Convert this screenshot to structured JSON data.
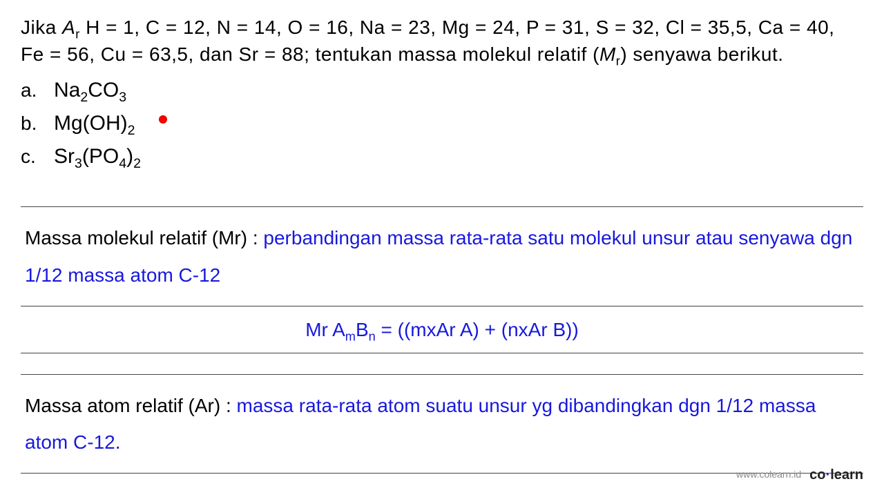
{
  "question": {
    "prefix": "Jika ",
    "ar_label": "A",
    "ar_sub": "r",
    "atomic_masses": " H = 1, C = 12, N = 14, O = 16, Na = 23, Mg = 24, P = 31, S = 32, Cl = 35,5, Ca = 40, Fe = 56, Cu = 63,5, dan Sr = 88; tentukan massa molekul relatif (",
    "mr_label": "M",
    "mr_sub": "r",
    "suffix": ") senyawa berikut."
  },
  "compounds": [
    {
      "letter": "a.",
      "parts": [
        {
          "t": "Na"
        },
        {
          "s": "2"
        },
        {
          "t": "CO"
        },
        {
          "s": "3"
        }
      ]
    },
    {
      "letter": "b.",
      "parts": [
        {
          "t": "Mg(OH)"
        },
        {
          "s": "2"
        }
      ]
    },
    {
      "letter": "c.",
      "parts": [
        {
          "t": "Sr"
        },
        {
          "s": "3"
        },
        {
          "t": "(PO"
        },
        {
          "s": "4"
        },
        {
          "t": ")"
        },
        {
          "s": "2"
        }
      ]
    }
  ],
  "definition1": {
    "label": "Massa molekul relatif (Mr) : ",
    "text": "perbandingan massa rata-rata satu molekul unsur atau senyawa dgn 1/12 massa atom C-12"
  },
  "formula": {
    "lhs_prefix": "Mr A",
    "lhs_sub1": "m",
    "lhs_mid": "B",
    "lhs_sub2": "n",
    "rhs": " =  ((mxAr A) + (nxAr B))"
  },
  "definition2": {
    "label": "Massa atom relatif (Ar) : ",
    "text": "massa rata-rata atom suatu unsur yg dibandingkan dgn 1/12 massa atom C-12."
  },
  "footer": {
    "url": "www.colearn.id",
    "logo_part1": "co",
    "logo_dot": "·",
    "logo_part2": "learn"
  },
  "colors": {
    "black": "#000000",
    "blue": "#1818dd",
    "red": "#ff0000",
    "background": "#ffffff"
  },
  "fonts": {
    "question": "Arial",
    "handwritten": "Comic Sans MS",
    "question_size": 28,
    "handwritten_size": 28
  }
}
